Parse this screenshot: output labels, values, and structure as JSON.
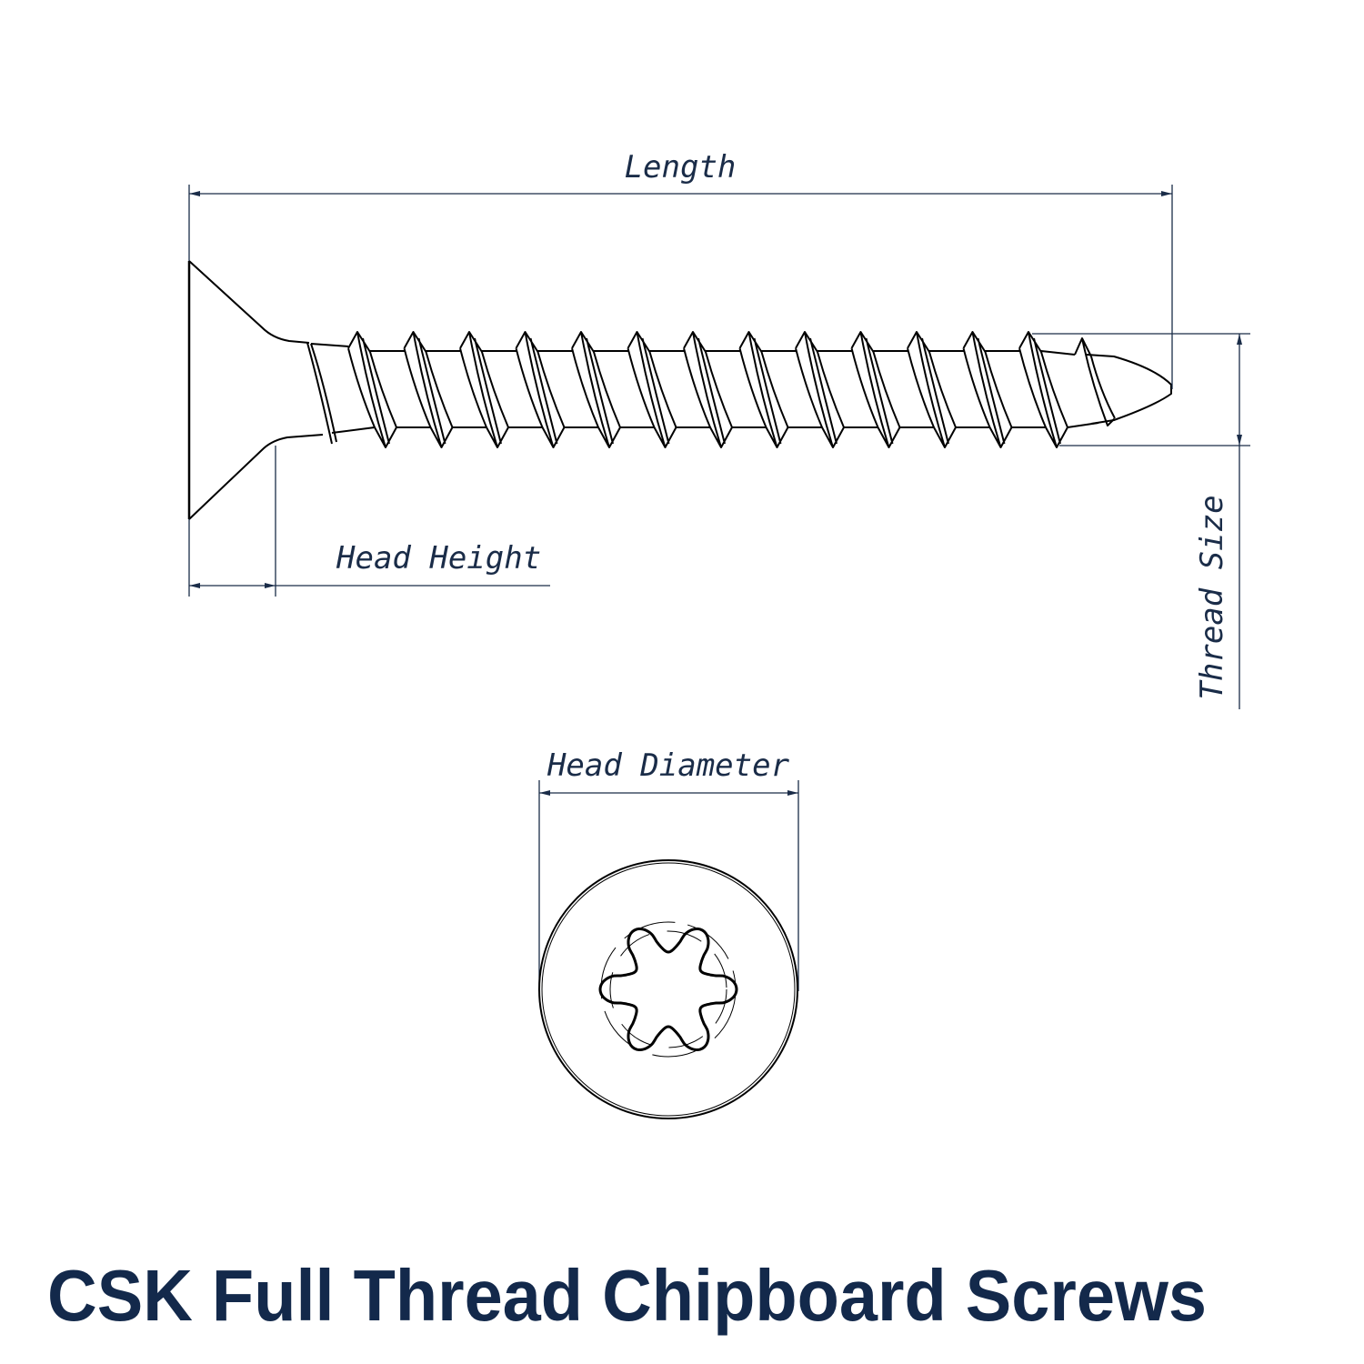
{
  "title": "CSK Full Thread Chipboard Screws",
  "dimensions": {
    "length": "Length",
    "head_height": "Head Height",
    "thread_size": "Thread Size",
    "head_diameter": "Head Diameter"
  },
  "drive_type_icon": "torx-six-lobe-recess",
  "colors": {
    "label": "#1a2c48",
    "title": "#13294b",
    "outline": "#000000"
  }
}
